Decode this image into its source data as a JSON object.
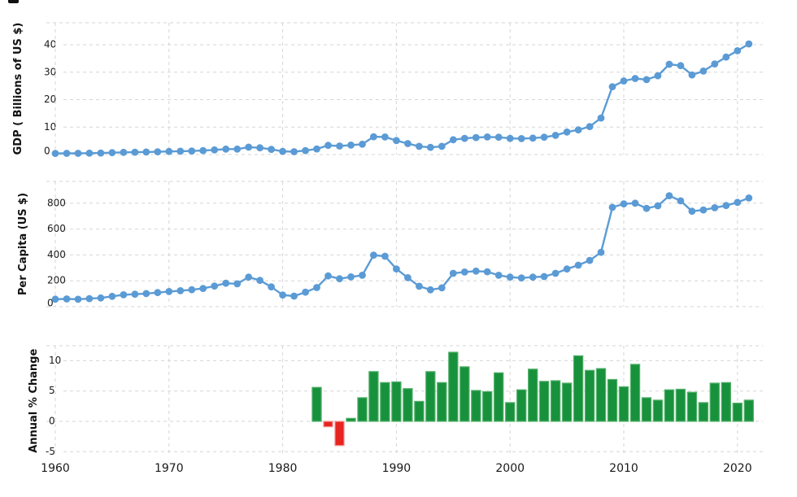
{
  "page": {
    "background": "#ffffff"
  },
  "x_axis": {
    "tick_years": [
      1960,
      1970,
      1980,
      1990,
      2000,
      2010,
      2020
    ],
    "tick_labels": [
      "1960",
      "1970",
      "1980",
      "1990",
      "2000",
      "2010",
      "2020"
    ]
  },
  "colors": {
    "line": "#5b9bd5",
    "grid": "#d6d6d6",
    "text": "#1a1a1a",
    "bar_positive": "#18913c",
    "bar_positive_border": "#57b26e",
    "bar_negative": "#e7241f",
    "bar_negative_border": "#f29c9c"
  },
  "chart_data": [
    {
      "type": "line",
      "ylabel": "GDP ( Billions of US $)",
      "x": [
        1960,
        1961,
        1962,
        1963,
        1964,
        1965,
        1966,
        1967,
        1968,
        1969,
        1970,
        1971,
        1972,
        1973,
        1974,
        1975,
        1976,
        1977,
        1978,
        1979,
        1980,
        1981,
        1982,
        1983,
        1984,
        1985,
        1986,
        1987,
        1988,
        1989,
        1990,
        1991,
        1992,
        1993,
        1994,
        1995,
        1996,
        1997,
        1998,
        1999,
        2000,
        2001,
        2002,
        2003,
        2004,
        2005,
        2006,
        2007,
        2008,
        2009,
        2010,
        2011,
        2012,
        2013,
        2014,
        2015,
        2016,
        2017,
        2018,
        2019,
        2020,
        2021
      ],
      "values": [
        0.42,
        0.45,
        0.44,
        0.5,
        0.55,
        0.68,
        0.8,
        0.85,
        0.93,
        1.02,
        1.12,
        1.22,
        1.3,
        1.45,
        1.7,
        2.0,
        2.0,
        2.7,
        2.45,
        1.9,
        1.15,
        1.05,
        1.45,
        2.05,
        3.35,
        3.1,
        3.45,
        3.75,
        6.5,
        6.4,
        5.1,
        4.0,
        3.0,
        2.6,
        3.0,
        5.4,
        5.9,
        6.2,
        6.4,
        6.3,
        5.9,
        5.8,
        6.0,
        6.3,
        7.0,
        8.2,
        9.0,
        10.2,
        13.3,
        24.7,
        26.8,
        27.7,
        27.3,
        28.7,
        32.9,
        32.4,
        29.0,
        30.4,
        33.0,
        35.5,
        37.8,
        40.3
      ],
      "yticks": [
        0,
        10,
        20,
        30,
        40
      ],
      "ylim": [
        0,
        48
      ],
      "grid": true,
      "legend": "none"
    },
    {
      "type": "line",
      "ylabel": "Per Capita (US $)",
      "x": [
        1960,
        1961,
        1962,
        1963,
        1964,
        1965,
        1966,
        1967,
        1968,
        1969,
        1970,
        1971,
        1972,
        1973,
        1974,
        1975,
        1976,
        1977,
        1978,
        1979,
        1980,
        1981,
        1982,
        1983,
        1984,
        1985,
        1986,
        1987,
        1988,
        1989,
        1990,
        1991,
        1992,
        1993,
        1994,
        1995,
        1996,
        1997,
        1998,
        1999,
        2000,
        2001,
        2002,
        2003,
        2004,
        2005,
        2006,
        2007,
        2008,
        2009,
        2010,
        2011,
        2012,
        2013,
        2014,
        2015,
        2016,
        2017,
        2018,
        2019,
        2020,
        2021
      ],
      "values": [
        58,
        60,
        57,
        62,
        67,
        80,
        92,
        96,
        101,
        109,
        117,
        123,
        131,
        141,
        159,
        181,
        177,
        228,
        203,
        153,
        90,
        82,
        112,
        148,
        238,
        216,
        230,
        243,
        398,
        390,
        292,
        224,
        158,
        130,
        145,
        258,
        268,
        275,
        270,
        243,
        228,
        222,
        228,
        233,
        258,
        291,
        321,
        358,
        420,
        768,
        795,
        800,
        760,
        780,
        858,
        818,
        738,
        748,
        765,
        782,
        806,
        840
      ],
      "yticks": [
        0,
        200,
        400,
        600,
        800
      ],
      "ylim": [
        0,
        970
      ],
      "grid": true,
      "legend": "none"
    },
    {
      "type": "bar",
      "ylabel": "Annual % Change",
      "x": [
        1983,
        1984,
        1985,
        1986,
        1987,
        1988,
        1989,
        1990,
        1991,
        1992,
        1993,
        1994,
        1995,
        1996,
        1997,
        1998,
        1999,
        2000,
        2001,
        2002,
        2003,
        2004,
        2005,
        2006,
        2007,
        2008,
        2009,
        2010,
        2011,
        2012,
        2013,
        2014,
        2015,
        2016,
        2017,
        2018,
        2019,
        2020,
        2021
      ],
      "values": [
        5.6,
        -0.9,
        -4.0,
        0.5,
        3.9,
        8.2,
        6.4,
        6.5,
        5.4,
        3.3,
        8.2,
        6.4,
        11.4,
        9.0,
        5.1,
        4.9,
        8.0,
        3.1,
        5.2,
        8.6,
        6.6,
        6.7,
        6.3,
        10.8,
        8.4,
        8.7,
        6.9,
        5.7,
        9.4,
        3.9,
        3.5,
        5.2,
        5.3,
        4.8,
        3.1,
        6.3,
        6.4,
        3.0,
        3.5
      ],
      "yticks": [
        -5,
        0,
        5,
        10
      ],
      "ylim": [
        -5.7,
        12.5
      ],
      "grid": true,
      "legend": "none"
    }
  ]
}
